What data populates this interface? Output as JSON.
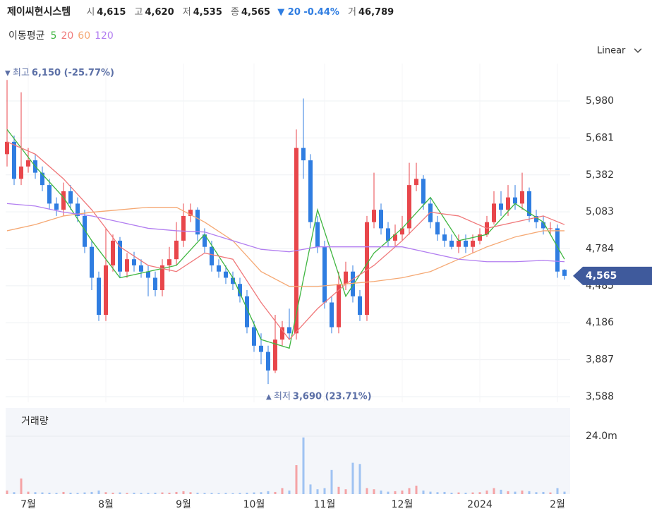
{
  "header": {
    "name": "제이씨현시스템",
    "fields": [
      {
        "label": "시",
        "value": "4,615"
      },
      {
        "label": "고",
        "value": "4,620"
      },
      {
        "label": "저",
        "value": "4,535"
      },
      {
        "label": "종",
        "value": "4,565"
      }
    ],
    "change": "20 -0.44%",
    "volume": {
      "label": "거",
      "value": "46,789"
    }
  },
  "chart_data": {
    "type": "candlestick",
    "scale": "Linear",
    "grid": true,
    "up_color": "#e8464b",
    "down_color": "#2f7de1",
    "xlim": [
      -0.2,
      79.8
    ],
    "xticks": [
      {
        "value": 3,
        "label": "7월"
      },
      {
        "value": 14,
        "label": "8월"
      },
      {
        "value": 25,
        "label": "9월"
      },
      {
        "value": 35,
        "label": "10월"
      },
      {
        "value": 45,
        "label": "11월"
      },
      {
        "value": 56,
        "label": "12월"
      },
      {
        "value": 67,
        "label": "2024"
      },
      {
        "value": 78,
        "label": "2월"
      }
    ],
    "ylim": [
      3542,
      6283
    ],
    "yticks": [
      {
        "value": 3588,
        "label": "3,588"
      },
      {
        "value": 3887,
        "label": "3,887"
      },
      {
        "value": 4186,
        "label": "4,186"
      },
      {
        "value": 4485,
        "label": "4,485"
      },
      {
        "value": 4784,
        "label": "4,784"
      },
      {
        "value": 5083,
        "label": "5,083"
      },
      {
        "value": 5382,
        "label": "5,382"
      },
      {
        "value": 5681,
        "label": "5,681"
      },
      {
        "value": 5980,
        "label": "5,980"
      }
    ],
    "open": [
      5550,
      5650,
      5350,
      5450,
      5500,
      5400,
      5300,
      5150,
      5100,
      5250,
      5150,
      5050,
      4800,
      4550,
      4250,
      4650,
      4850,
      4600,
      4700,
      4650,
      4600,
      4550,
      4450,
      4650,
      4700,
      4850,
      5050,
      5100,
      4900,
      4800,
      4650,
      4600,
      4550,
      4500,
      4400,
      4150,
      4000,
      3950,
      3800,
      4050,
      4150,
      4100,
      5600,
      5500,
      5000,
      4800,
      4350,
      4150,
      4500,
      4600,
      4400,
      4250,
      5000,
      5100,
      4950,
      4850,
      4900,
      4950,
      5300,
      5350,
      5150,
      5000,
      4900,
      4850,
      4800,
      4850,
      4800,
      4850,
      4900,
      5000,
      5150,
      5100,
      5200,
      5150,
      5250,
      5050,
      5000,
      4950,
      4950,
      4615
    ],
    "high": [
      6150,
      5700,
      6050,
      5600,
      5550,
      5450,
      5350,
      5200,
      5320,
      5300,
      5200,
      5100,
      4850,
      4600,
      4950,
      4900,
      4880,
      4750,
      4760,
      4700,
      4650,
      4600,
      4700,
      4800,
      5000,
      5150,
      5150,
      5120,
      4950,
      4850,
      4700,
      4650,
      4600,
      4550,
      4450,
      4200,
      4100,
      4000,
      4250,
      4200,
      4300,
      5750,
      6000,
      5550,
      5050,
      4850,
      4400,
      4600,
      4680,
      4650,
      4450,
      5050,
      5400,
      5150,
      5000,
      4980,
      5050,
      5480,
      5480,
      5380,
      5200,
      5050,
      4950,
      4900,
      4900,
      4900,
      4900,
      4950,
      5050,
      5250,
      5250,
      5300,
      5300,
      5400,
      5280,
      5100,
      5050,
      5000,
      4980,
      4620
    ],
    "low": [
      5450,
      5300,
      5300,
      5400,
      5350,
      5250,
      5100,
      5050,
      5050,
      5100,
      5000,
      4750,
      4450,
      4200,
      4200,
      4600,
      4550,
      4550,
      4600,
      4550,
      4400,
      4400,
      4400,
      4600,
      4650,
      4800,
      5000,
      4850,
      4750,
      4600,
      4550,
      4500,
      4450,
      4350,
      4100,
      3950,
      3850,
      3690,
      3780,
      4000,
      4050,
      4050,
      5350,
      4950,
      4750,
      4300,
      4100,
      4100,
      4450,
      4350,
      4200,
      4200,
      4950,
      4900,
      4800,
      4800,
      4850,
      4900,
      5250,
      5100,
      4950,
      4850,
      4800,
      4780,
      4750,
      4750,
      4750,
      4820,
      4880,
      4980,
      5050,
      5050,
      5100,
      5100,
      5000,
      4950,
      4900,
      4900,
      4550,
      4535
    ],
    "close": [
      5650,
      5350,
      5450,
      5500,
      5400,
      5300,
      5150,
      5100,
      5250,
      5150,
      5050,
      4800,
      4550,
      4250,
      4650,
      4850,
      4600,
      4700,
      4650,
      4600,
      4550,
      4450,
      4650,
      4700,
      4850,
      5050,
      5100,
      4900,
      4800,
      4650,
      4600,
      4550,
      4500,
      4400,
      4150,
      4000,
      3950,
      3800,
      4050,
      4150,
      4100,
      5600,
      5500,
      5000,
      4800,
      4350,
      4150,
      4500,
      4600,
      4400,
      4250,
      5000,
      5100,
      4950,
      4850,
      4900,
      4950,
      5300,
      5350,
      5150,
      5000,
      4900,
      4850,
      4800,
      4850,
      4800,
      4850,
      4900,
      5000,
      5150,
      5100,
      5200,
      5150,
      5250,
      5050,
      5000,
      4950,
      4950,
      4600,
      4565
    ],
    "moving_average": {
      "title": "이동평균",
      "series": [
        {
          "name": "5",
          "color": "#3fb640",
          "x": [
            0,
            4,
            8,
            12,
            16,
            20,
            24,
            28,
            32,
            36,
            40,
            44,
            48,
            52,
            56,
            60,
            64,
            68,
            72,
            76,
            79
          ],
          "values": [
            5750,
            5450,
            5200,
            4850,
            4550,
            4600,
            4650,
            4900,
            4550,
            4050,
            3980,
            5100,
            4400,
            4750,
            4950,
            5200,
            4850,
            4900,
            5150,
            5000,
            4700
          ]
        },
        {
          "name": "20",
          "color": "#f0787a",
          "x": [
            0,
            4,
            8,
            12,
            16,
            20,
            24,
            28,
            32,
            36,
            40,
            44,
            48,
            52,
            56,
            60,
            64,
            68,
            72,
            76,
            79
          ],
          "values": [
            5650,
            5550,
            5350,
            5100,
            4800,
            4650,
            4600,
            4750,
            4700,
            4350,
            4050,
            4300,
            4500,
            4650,
            4850,
            5080,
            5050,
            4950,
            5000,
            5050,
            4980
          ]
        },
        {
          "name": "60",
          "color": "#f5a873",
          "x": [
            0,
            4,
            8,
            12,
            16,
            20,
            24,
            28,
            32,
            36,
            40,
            44,
            48,
            52,
            56,
            60,
            64,
            68,
            72,
            76,
            79
          ],
          "values": [
            4930,
            4980,
            5050,
            5080,
            5100,
            5120,
            5120,
            5000,
            4850,
            4600,
            4480,
            4480,
            4500,
            4520,
            4550,
            4600,
            4700,
            4800,
            4880,
            4930,
            4930
          ]
        },
        {
          "name": "120",
          "color": "#b27ef0",
          "x": [
            0,
            4,
            8,
            12,
            16,
            20,
            24,
            28,
            32,
            36,
            40,
            44,
            48,
            52,
            56,
            60,
            64,
            68,
            72,
            76,
            79
          ],
          "values": [
            5150,
            5130,
            5080,
            5050,
            5000,
            4950,
            4930,
            4920,
            4850,
            4780,
            4760,
            4800,
            4800,
            4800,
            4800,
            4750,
            4700,
            4680,
            4680,
            4690,
            4680
          ]
        }
      ]
    },
    "annotations": [
      {
        "label": "최고",
        "value": 6150,
        "value_label": "6,150 (-25.77%)"
      },
      {
        "label": "최저",
        "value": 3690,
        "value_label": "3,690 (23.71%)"
      }
    ],
    "last_price": {
      "value": 4565,
      "label": "4,565"
    },
    "volume": {
      "title": "거래량",
      "ylim": [
        0,
        35700000
      ],
      "yticks": [
        {
          "value": 24000000,
          "label": "24.0m"
        }
      ],
      "values": [
        1500000,
        800000,
        6500000,
        1000000,
        800000,
        700000,
        600000,
        500000,
        900000,
        600000,
        500000,
        700000,
        900000,
        1500000,
        800000,
        600000,
        700000,
        500000,
        600000,
        500000,
        500000,
        600000,
        700000,
        600000,
        900000,
        1200000,
        800000,
        600000,
        500000,
        500000,
        400000,
        500000,
        400000,
        500000,
        600000,
        700000,
        800000,
        1200000,
        900000,
        2500000,
        1500000,
        12000000,
        23500000,
        4000000,
        2000000,
        2500000,
        10000000,
        3000000,
        2000000,
        13000000,
        12500000,
        2500000,
        2000000,
        1500000,
        1000000,
        1200000,
        1500000,
        2500000,
        3500000,
        1500000,
        1000000,
        800000,
        900000,
        600000,
        700000,
        600000,
        700000,
        800000,
        1500000,
        2500000,
        1800000,
        1200000,
        1000000,
        1500000,
        1200000,
        800000,
        900000,
        700000,
        2500000,
        1000000
      ]
    }
  }
}
